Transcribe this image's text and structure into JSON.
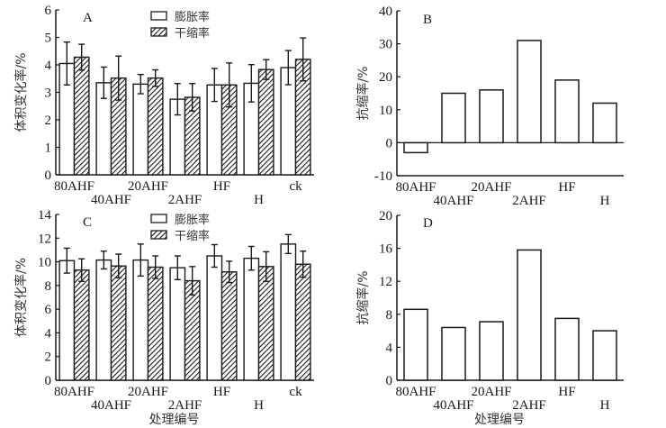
{
  "figure": {
    "colors": {
      "ink": "#1a1a1a",
      "bar_fill": "#ffffff"
    }
  },
  "chart_data": [
    {
      "id": "A",
      "type": "bar",
      "panel_letter": "A",
      "categories": [
        "80AHF",
        "40AHF",
        "20AHF",
        "2AHF",
        "HF",
        "H",
        "ck"
      ],
      "series": [
        {
          "name": "膨胀率",
          "pattern": "open",
          "values": [
            4.05,
            3.35,
            3.3,
            2.75,
            3.27,
            3.33,
            3.9
          ],
          "errors": [
            0.78,
            0.57,
            0.35,
            0.57,
            0.6,
            0.68,
            0.62
          ]
        },
        {
          "name": "干缩率",
          "pattern": "hatch",
          "values": [
            4.28,
            3.52,
            3.52,
            2.82,
            3.27,
            3.83,
            4.2
          ],
          "errors": [
            0.47,
            0.8,
            0.3,
            0.5,
            0.8,
            0.36,
            0.78
          ]
        }
      ],
      "xlabel": "",
      "ylabel": "体积变化率/%",
      "ylim": [
        0,
        6
      ],
      "yticks": [
        0,
        1,
        2,
        3,
        4,
        5,
        6
      ],
      "legend": "top-center"
    },
    {
      "id": "B",
      "type": "bar",
      "panel_letter": "B",
      "categories": [
        "80AHF",
        "40AHF",
        "20AHF",
        "2AHF",
        "HF",
        "H"
      ],
      "values": [
        -3,
        15,
        16,
        31,
        19,
        12
      ],
      "xlabel": "",
      "ylabel": "抗缩率/%",
      "ylim": [
        -10,
        40
      ],
      "yticks": [
        -10,
        0,
        10,
        20,
        30,
        40
      ]
    },
    {
      "id": "C",
      "type": "bar",
      "panel_letter": "C",
      "categories": [
        "80AHF",
        "40AHF",
        "20AHF",
        "2AHF",
        "HF",
        "H",
        "ck"
      ],
      "series": [
        {
          "name": "膨胀率",
          "pattern": "open",
          "values": [
            10.1,
            10.15,
            10.15,
            9.5,
            10.5,
            10.3,
            11.5
          ],
          "errors": [
            1.05,
            0.75,
            1.35,
            1.0,
            0.95,
            1.0,
            0.8
          ]
        },
        {
          "name": "干缩率",
          "pattern": "hatch",
          "values": [
            9.3,
            9.65,
            9.55,
            8.4,
            9.15,
            9.6,
            9.8
          ],
          "errors": [
            0.95,
            1.0,
            0.95,
            1.2,
            0.9,
            1.25,
            1.1
          ]
        }
      ],
      "xlabel": "处理编号",
      "ylabel": "体积变化率/%",
      "ylim": [
        0,
        14
      ],
      "yticks": [
        0,
        2,
        4,
        6,
        8,
        10,
        12,
        14
      ],
      "legend": "top-center"
    },
    {
      "id": "D",
      "type": "bar",
      "panel_letter": "D",
      "categories": [
        "80AHF",
        "40AHF",
        "20AHF",
        "2AHF",
        "HF",
        "H"
      ],
      "values": [
        8.6,
        6.4,
        7.1,
        15.8,
        7.5,
        6.0
      ],
      "xlabel": "处理编号",
      "ylabel": "抗缩率/%",
      "ylim": [
        0,
        20
      ],
      "yticks": [
        0,
        4,
        8,
        12,
        16,
        20
      ]
    }
  ]
}
